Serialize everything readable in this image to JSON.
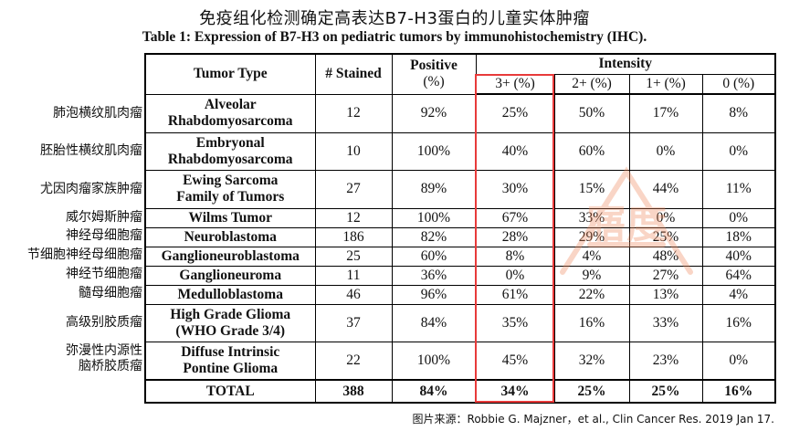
{
  "title_zh": "免疫组化检测确定高表达B7-H3蛋白的儿童实体肿瘤",
  "title_en": "Table 1: Expression of B7-H3 on pediatric tumors by immunohistochemistry (IHC).",
  "header": {
    "tumor_type": "Tumor Type",
    "stained": "# Stained",
    "positive_1": "Positive",
    "positive_2": "(%)",
    "intensity": "Intensity",
    "i3": "3+ (%)",
    "i2": "2+ (%)",
    "i1": "1+ (%)",
    "i0": "0 (%)"
  },
  "rows": [
    {
      "zh": [
        "肺泡横纹肌肉瘤"
      ],
      "type": [
        "Alveolar",
        "Rhabdomyosarcoma"
      ],
      "stained": "12",
      "positive": "92%",
      "i3": "25%",
      "i2": "50%",
      "i1": "17%",
      "i0": "8%"
    },
    {
      "zh": [
        "胚胎性横纹肌肉瘤"
      ],
      "type": [
        "Embryonal",
        "Rhabdomyosarcoma"
      ],
      "stained": "10",
      "positive": "100%",
      "i3": "40%",
      "i2": "60%",
      "i1": "0%",
      "i0": "0%"
    },
    {
      "zh": [
        "尤因肉瘤家族肿瘤"
      ],
      "type": [
        "Ewing Sarcoma",
        "Family of Tumors"
      ],
      "stained": "27",
      "positive": "89%",
      "i3": "30%",
      "i2": "15%",
      "i1": "44%",
      "i0": "11%"
    },
    {
      "zh": [
        "威尔姆斯肿瘤"
      ],
      "type": [
        "Wilms Tumor"
      ],
      "stained": "12",
      "positive": "100%",
      "i3": "67%",
      "i2": "33%",
      "i1": "0%",
      "i0": "0%"
    },
    {
      "zh": [
        "神经母细胞瘤"
      ],
      "type": [
        "Neuroblastoma"
      ],
      "stained": "186",
      "positive": "82%",
      "i3": "28%",
      "i2": "29%",
      "i1": "25%",
      "i0": "18%"
    },
    {
      "zh": [
        "节细胞神经母细胞瘤"
      ],
      "type": [
        "Ganglioneuroblastoma"
      ],
      "stained": "25",
      "positive": "60%",
      "i3": "8%",
      "i2": "4%",
      "i1": "48%",
      "i0": "40%"
    },
    {
      "zh": [
        "神经节细胞瘤"
      ],
      "type": [
        "Ganglioneuroma"
      ],
      "stained": "11",
      "positive": "36%",
      "i3": "0%",
      "i2": "9%",
      "i1": "27%",
      "i0": "64%"
    },
    {
      "zh": [
        "髓母细胞瘤"
      ],
      "type": [
        "Medulloblastoma"
      ],
      "stained": "46",
      "positive": "96%",
      "i3": "61%",
      "i2": "22%",
      "i1": "13%",
      "i0": "4%"
    },
    {
      "zh": [
        "高级别胶质瘤"
      ],
      "type": [
        "High Grade Glioma",
        "(WHO Grade 3/4)"
      ],
      "stained": "37",
      "positive": "84%",
      "i3": "35%",
      "i2": "16%",
      "i1": "33%",
      "i0": "16%"
    },
    {
      "zh": [
        "弥漫性内源性",
        "脑桥胶质瘤"
      ],
      "type": [
        "Diffuse Intrinsic",
        "Pontine Glioma"
      ],
      "stained": "22",
      "positive": "100%",
      "i3": "45%",
      "i2": "32%",
      "i1": "23%",
      "i0": "0%"
    }
  ],
  "total": {
    "label": "TOTAL",
    "stained": "388",
    "positive": "84%",
    "i3": "34%",
    "i2": "25%",
    "i1": "25%",
    "i0": "16%"
  },
  "caption": "图片来源：Robbie G. Majzner，et al., Clin Cancer Res. 2019 Jan 17.",
  "watermark_text": "寤度",
  "colors": {
    "highlight": "#e83a3a",
    "watermark": "#f08a5d"
  }
}
